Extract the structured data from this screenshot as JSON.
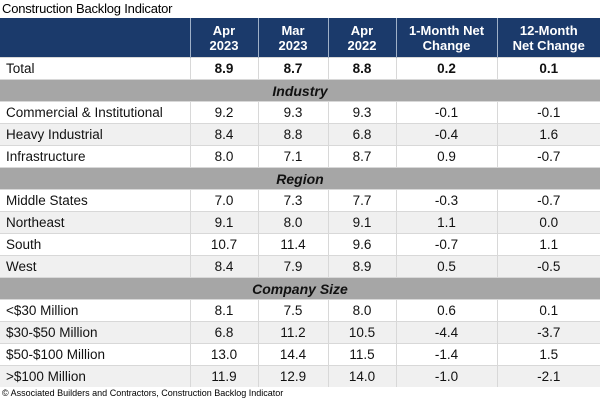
{
  "title": "Construction Backlog Indicator",
  "headers": [
    "",
    "Apr 2023",
    "Mar 2023",
    "Apr 2022",
    "1-Month Net Change",
    "12-Month Net Change"
  ],
  "total": {
    "label": "Total",
    "values": [
      "8.9",
      "8.7",
      "8.8",
      "0.2",
      "0.1"
    ]
  },
  "sections": [
    {
      "name": "Industry",
      "rows": [
        {
          "label": "Commercial & Institutional",
          "values": [
            "9.2",
            "9.3",
            "9.3",
            "-0.1",
            "-0.1"
          ]
        },
        {
          "label": "Heavy Industrial",
          "values": [
            "8.4",
            "8.8",
            "6.8",
            "-0.4",
            "1.6"
          ]
        },
        {
          "label": "Infrastructure",
          "values": [
            "8.0",
            "7.1",
            "8.7",
            "0.9",
            "-0.7"
          ]
        }
      ]
    },
    {
      "name": "Region",
      "rows": [
        {
          "label": "Middle States",
          "values": [
            "7.0",
            "7.3",
            "7.7",
            "-0.3",
            "-0.7"
          ]
        },
        {
          "label": "Northeast",
          "values": [
            "9.1",
            "8.0",
            "9.1",
            "1.1",
            "0.0"
          ]
        },
        {
          "label": "South",
          "values": [
            "10.7",
            "11.4",
            "9.6",
            "-0.7",
            "1.1"
          ]
        },
        {
          "label": "West",
          "values": [
            "8.4",
            "7.9",
            "8.9",
            "0.5",
            "-0.5"
          ]
        }
      ]
    },
    {
      "name": "Company Size",
      "rows": [
        {
          "label": "<$30 Million",
          "values": [
            "8.1",
            "7.5",
            "8.0",
            "0.6",
            "0.1"
          ]
        },
        {
          "label": "$30-$50 Million",
          "values": [
            "6.8",
            "11.2",
            "10.5",
            "-4.4",
            "-3.7"
          ]
        },
        {
          "label": "$50-$100 Million",
          "values": [
            "13.0",
            "14.4",
            "11.5",
            "-1.4",
            "1.5"
          ]
        },
        {
          "label": ">$100 Million",
          "values": [
            "11.9",
            "12.9",
            "14.0",
            "-1.0",
            "-2.1"
          ]
        }
      ]
    }
  ],
  "footer": "© Associated Builders and Contractors, Construction Backlog Indicator",
  "colors": {
    "header": "#1b3a6b",
    "section": "#a6a6a6",
    "alt_row": "#f0f0f0"
  }
}
